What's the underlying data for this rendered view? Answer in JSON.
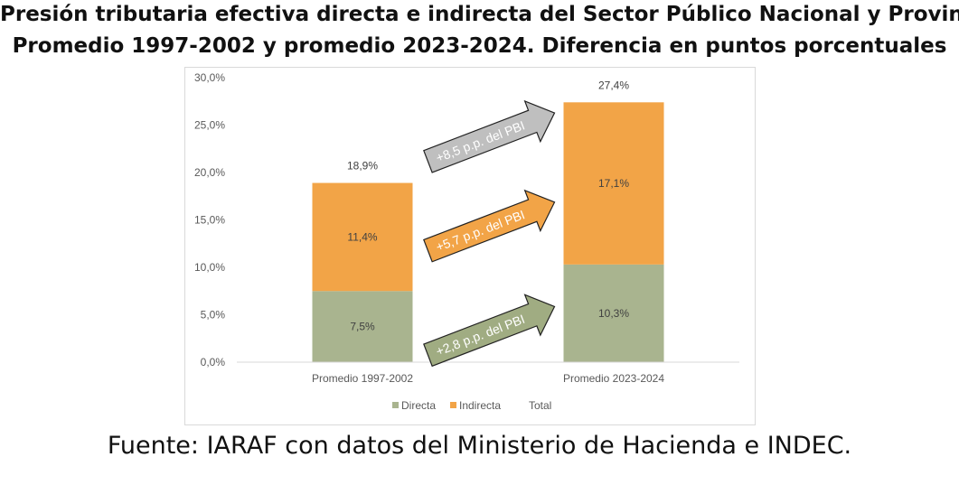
{
  "title_line1": "Presión tributaria efectiva directa e indirecta del Sector Público Nacional y Provincial",
  "title_line2": "Promedio 1997-2002 y promedio 2023-2024. Diferencia en puntos porcentuales",
  "source": "Fuente: IARAF con datos del Ministerio de Hacienda e INDEC.",
  "colors": {
    "directa": "#A9B48F",
    "indirecta": "#F2A447",
    "arrow_total": "#BFBFBF",
    "arrow_indirecta": "#F2A447",
    "arrow_directa": "#A0AC82"
  },
  "chart_data": {
    "type": "bar",
    "stacked": true,
    "categories": [
      "Promedio 1997-2002",
      "Promedio 2023-2024"
    ],
    "series": [
      {
        "name": "Directa",
        "values": [
          7.5,
          10.3
        ],
        "labels": [
          "7,5%",
          "10,3%"
        ]
      },
      {
        "name": "Indirecta",
        "values": [
          11.4,
          17.1
        ],
        "labels": [
          "11,4%",
          "17,1%"
        ]
      },
      {
        "name": "Total",
        "values": [
          18.9,
          27.4
        ],
        "labels": [
          "18,9%",
          "27,4%"
        ]
      }
    ],
    "ylim": [
      0,
      30
    ],
    "yticks": [
      0,
      5,
      10,
      15,
      20,
      25,
      30
    ],
    "ytick_labels": [
      "0,0%",
      "5,0%",
      "10,0%",
      "15,0%",
      "20,0%",
      "25,0%",
      "30,0%"
    ],
    "legend": [
      "Directa",
      "Indirecta",
      "Total"
    ],
    "legend_position": "bottom",
    "grid": false,
    "annotations": [
      {
        "text": "+8,5 p.p. del PBI",
        "series": "Total"
      },
      {
        "text": "+5,7 p.p. del PBI",
        "series": "Indirecta"
      },
      {
        "text": "+2,8 p.p. del PBI",
        "series": "Directa"
      }
    ]
  }
}
